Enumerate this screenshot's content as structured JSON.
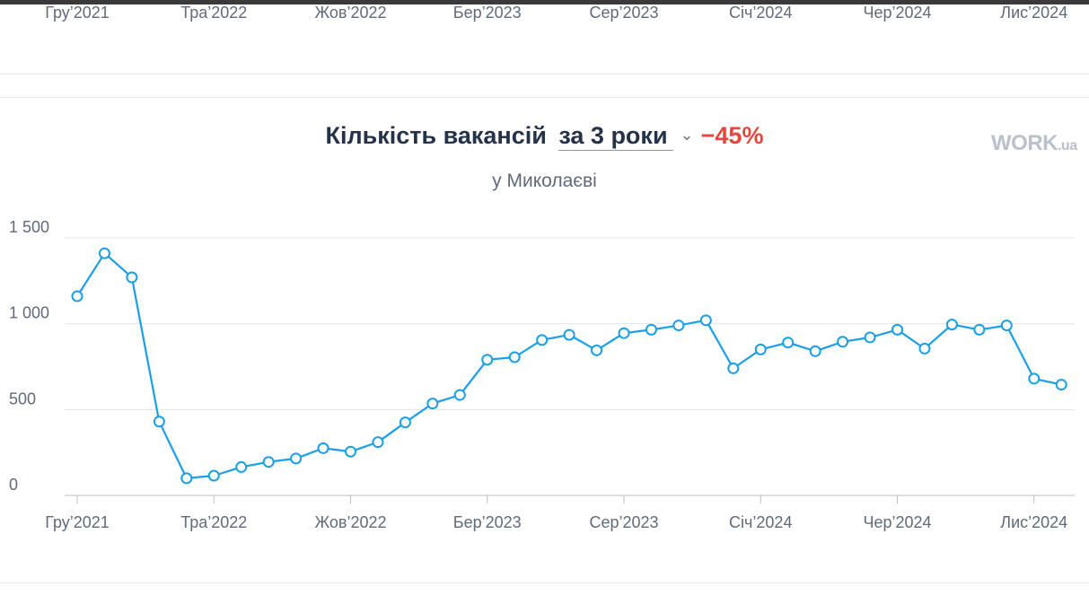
{
  "top_axis": {
    "labels": [
      "Гру’2021",
      "Тра’2022",
      "Жов’2022",
      "Бер’2023",
      "Сер’2023",
      "Січ’2024",
      "Чер’2024",
      "Лис’2024"
    ]
  },
  "header": {
    "title": "Кількість вакансій",
    "period": "за 3 роки",
    "change": "−45%",
    "subtitle": "у Миколаєві"
  },
  "brand": {
    "main": "WORK",
    "suffix": ".ua"
  },
  "colors": {
    "line": "#1a9fe6",
    "change": "#e8453c",
    "grid": "#e3e6ea",
    "brand": "#b9c1cc"
  },
  "chart_data": {
    "type": "line",
    "title": "Кількість вакансій",
    "subtitle": "у Миколаєві",
    "ylim": [
      0,
      1500
    ],
    "yticks": [
      0,
      500,
      1000,
      1500
    ],
    "ytick_labels": [
      "0",
      "500",
      "1 000",
      "1 500"
    ],
    "xtick_labels": [
      "Гру’2021",
      "Тра’2022",
      "Жов’2022",
      "Бер’2023",
      "Сер’2023",
      "Січ’2024",
      "Чер’2024",
      "Лис’2024"
    ],
    "xtick_positions": [
      0,
      5,
      10,
      15,
      20,
      25,
      30,
      35
    ],
    "grid": true,
    "series": [
      {
        "values": [
          1160,
          1410,
          1270,
          430,
          100,
          115,
          165,
          195,
          215,
          275,
          255,
          310,
          425,
          535,
          585,
          790,
          805,
          905,
          935,
          845,
          945,
          965,
          990,
          1020,
          740,
          850,
          890,
          840,
          895,
          920,
          965,
          855,
          995,
          965,
          990,
          680,
          645
        ]
      }
    ]
  }
}
